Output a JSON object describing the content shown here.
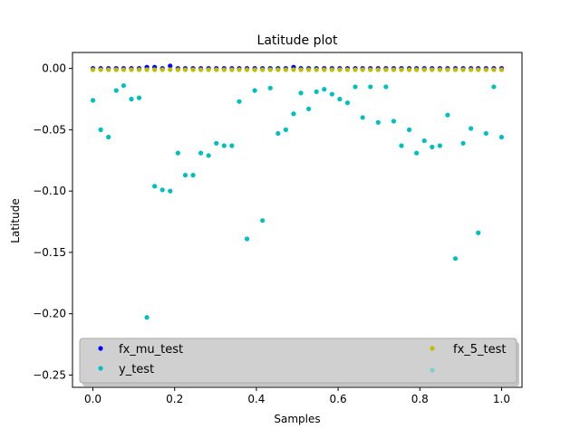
{
  "chart_data": {
    "type": "scatter",
    "title": "Latitude plot",
    "xlabel": "Samples",
    "ylabel": "Latitude",
    "xlim": [
      -0.05,
      1.05
    ],
    "ylim": [
      -0.26,
      0.013
    ],
    "grid": false,
    "legend_placement": "lower-center",
    "xticks": [
      {
        "value": 0.0,
        "label": "0.0"
      },
      {
        "value": 0.2,
        "label": "0.2"
      },
      {
        "value": 0.4,
        "label": "0.4"
      },
      {
        "value": 0.6,
        "label": "0.6"
      },
      {
        "value": 0.8,
        "label": "0.8"
      },
      {
        "value": 1.0,
        "label": "1.0"
      }
    ],
    "yticks": [
      {
        "value": 0.0,
        "label": "0.00"
      },
      {
        "value": -0.05,
        "label": "−0.05"
      },
      {
        "value": -0.1,
        "label": "−0.10"
      },
      {
        "value": -0.15,
        "label": "−0.15"
      },
      {
        "value": -0.2,
        "label": "−0.20"
      },
      {
        "value": -0.25,
        "label": "−0.25"
      }
    ],
    "legend": [
      {
        "label": "fx_mu_test",
        "color": "#0000ff"
      },
      {
        "label": "y_test",
        "color": "#00bfbf"
      },
      {
        "label": "fx_5_test",
        "color": "#bfbf00"
      },
      {
        "label": "",
        "color": "#7fcfcf"
      }
    ],
    "series": [
      {
        "name": "fx_mu_test",
        "color": "#0000ff",
        "x": [
          0.0,
          0.019,
          0.038,
          0.057,
          0.075,
          0.094,
          0.113,
          0.132,
          0.151,
          0.17,
          0.189,
          0.208,
          0.226,
          0.245,
          0.264,
          0.283,
          0.302,
          0.321,
          0.34,
          0.358,
          0.377,
          0.396,
          0.415,
          0.434,
          0.453,
          0.472,
          0.491,
          0.509,
          0.528,
          0.547,
          0.566,
          0.585,
          0.604,
          0.623,
          0.642,
          0.66,
          0.679,
          0.698,
          0.717,
          0.736,
          0.755,
          0.774,
          0.792,
          0.811,
          0.83,
          0.849,
          0.868,
          0.887,
          0.906,
          0.925,
          0.943,
          0.962,
          0.981,
          1.0
        ],
        "y": [
          0.0,
          0.0,
          0.0,
          0.0,
          0.0,
          0.0,
          0.0,
          0.001,
          0.001,
          0.0,
          0.002,
          0.0,
          0.0,
          0.0,
          0.0,
          0.0,
          0.0,
          0.0,
          0.0,
          0.0,
          0.0,
          0.0,
          0.0,
          0.0,
          0.0,
          0.0,
          0.001,
          0.0,
          0.0,
          0.0,
          0.0,
          0.0,
          0.0,
          0.0,
          0.0,
          0.0,
          0.0,
          0.0,
          0.0,
          0.0,
          0.0,
          0.0,
          0.0,
          0.0,
          0.0,
          0.0,
          0.0,
          0.0,
          0.0,
          0.0,
          0.0,
          0.0,
          0.0,
          0.0
        ]
      },
      {
        "name": "y_test",
        "color": "#00bfbf",
        "x": [
          0.0,
          0.019,
          0.038,
          0.057,
          0.075,
          0.094,
          0.113,
          0.132,
          0.151,
          0.17,
          0.189,
          0.208,
          0.226,
          0.245,
          0.264,
          0.283,
          0.302,
          0.321,
          0.34,
          0.358,
          0.377,
          0.396,
          0.415,
          0.434,
          0.453,
          0.472,
          0.491,
          0.509,
          0.528,
          0.547,
          0.566,
          0.585,
          0.604,
          0.623,
          0.642,
          0.66,
          0.679,
          0.698,
          0.717,
          0.736,
          0.755,
          0.774,
          0.792,
          0.811,
          0.83,
          0.849,
          0.868,
          0.887,
          0.906,
          0.925,
          0.943,
          0.962,
          0.981,
          1.0
        ],
        "y": [
          -0.026,
          -0.05,
          -0.056,
          -0.018,
          -0.014,
          -0.025,
          -0.024,
          -0.203,
          -0.096,
          -0.099,
          -0.1,
          -0.069,
          -0.087,
          -0.087,
          -0.069,
          -0.071,
          -0.061,
          -0.063,
          -0.063,
          -0.027,
          -0.139,
          -0.018,
          -0.124,
          -0.016,
          -0.053,
          -0.05,
          -0.037,
          -0.02,
          -0.033,
          -0.019,
          -0.017,
          -0.021,
          -0.025,
          -0.028,
          -0.015,
          -0.04,
          -0.015,
          -0.044,
          -0.015,
          -0.043,
          -0.063,
          -0.05,
          -0.069,
          -0.059,
          -0.064,
          -0.063,
          -0.038,
          -0.155,
          -0.061,
          -0.049,
          -0.134,
          -0.053,
          -0.015,
          -0.056
        ]
      },
      {
        "name": "fx_5_test",
        "color": "#bfbf00",
        "x": [
          0.0,
          0.019,
          0.038,
          0.057,
          0.075,
          0.094,
          0.113,
          0.132,
          0.151,
          0.17,
          0.189,
          0.208,
          0.226,
          0.245,
          0.264,
          0.283,
          0.302,
          0.321,
          0.34,
          0.358,
          0.377,
          0.396,
          0.415,
          0.434,
          0.453,
          0.472,
          0.491,
          0.509,
          0.528,
          0.547,
          0.566,
          0.585,
          0.604,
          0.623,
          0.642,
          0.66,
          0.679,
          0.698,
          0.717,
          0.736,
          0.755,
          0.774,
          0.792,
          0.811,
          0.83,
          0.849,
          0.868,
          0.887,
          0.906,
          0.925,
          0.943,
          0.962,
          0.981,
          1.0
        ],
        "y": [
          -0.001,
          -0.001,
          -0.001,
          -0.001,
          -0.001,
          -0.001,
          -0.001,
          -0.001,
          -0.001,
          -0.001,
          -0.001,
          -0.001,
          -0.001,
          -0.001,
          -0.001,
          -0.001,
          -0.001,
          -0.001,
          -0.001,
          -0.001,
          -0.001,
          -0.001,
          -0.001,
          -0.001,
          -0.001,
          -0.001,
          -0.001,
          -0.001,
          -0.001,
          -0.001,
          -0.001,
          -0.001,
          -0.001,
          -0.001,
          -0.001,
          -0.001,
          -0.001,
          -0.001,
          -0.001,
          -0.001,
          -0.001,
          -0.001,
          -0.001,
          -0.001,
          -0.001,
          -0.001,
          -0.001,
          -0.001,
          -0.001,
          -0.001,
          -0.001,
          -0.001,
          -0.001,
          -0.001
        ]
      }
    ]
  }
}
